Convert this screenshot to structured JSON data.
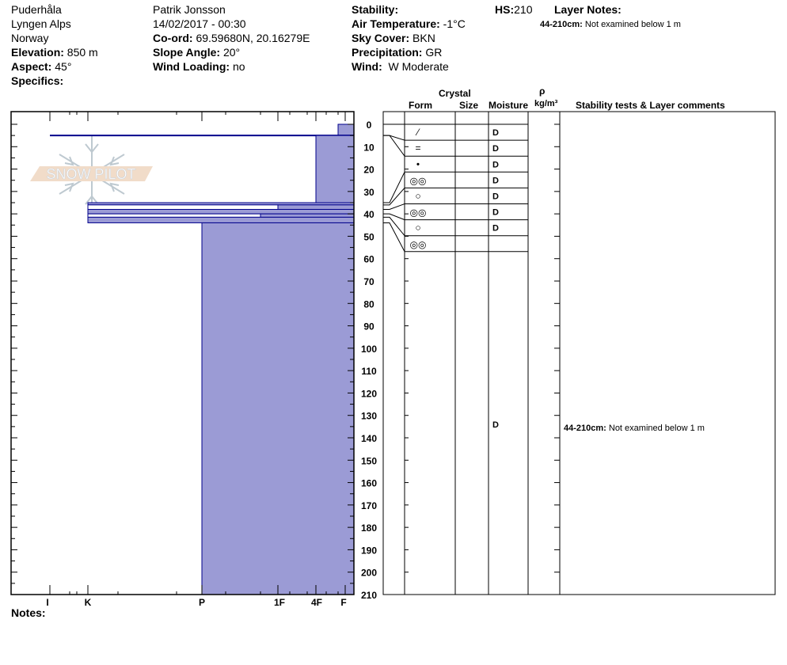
{
  "header": {
    "location": "Puderhåla",
    "range": "Lyngen Alps",
    "country": "Norway",
    "elevation_label": "Elevation:",
    "elevation": "850 m",
    "aspect_label": "Aspect:",
    "aspect": "45°",
    "specifics_label": "Specifics:",
    "observer": "Patrik Jonsson",
    "datetime": "14/02/2017 - 00:30",
    "coord_label": "Co-ord:",
    "coord": "69.59680N, 20.16279E",
    "slope_label": "Slope Angle:",
    "slope": "20°",
    "wind_loading_label": "Wind Loading:",
    "wind_loading": "no",
    "stability_label": "Stability:",
    "air_temp_label": "Air Temperature:",
    "air_temp": "-1°C",
    "sky_label": "Sky Cover:",
    "sky": "BKN",
    "precip_label": "Precipitation:",
    "precip": "GR",
    "wind_label": "Wind:",
    "wind": "W Moderate",
    "hs_label": "HS:",
    "hs": "210",
    "layer_notes_label": "Layer Notes:",
    "layer_note_range": "44-210cm:",
    "layer_note_text": "Not examined below 1 m"
  },
  "table_headers": {
    "crystal": "Crystal",
    "form": "Form",
    "size": "Size",
    "moisture": "Moisture",
    "rho": "ρ",
    "density_unit": "kg/m³",
    "comments": "Stability tests & Layer comments"
  },
  "notes_label": "Notes:",
  "logo_text": "SNOW PILOT",
  "colors": {
    "fill": "#9b9bd5",
    "outline": "#00008b",
    "crust": "#00008b"
  },
  "chart_data": {
    "type": "snow-profile",
    "y_axis": {
      "label": "",
      "range": [
        0,
        210
      ],
      "tick_step": 10,
      "inverted": true
    },
    "x_axis": {
      "ticks": [
        "I",
        "K",
        "P",
        "1F",
        "4F",
        "F"
      ]
    },
    "layers": [
      {
        "top": 0,
        "bottom": 5,
        "hardness": "F+",
        "form": "⁄",
        "moisture": "D"
      },
      {
        "top": 5,
        "bottom": 5,
        "hardness": "I",
        "form": "=",
        "moisture": "D"
      },
      {
        "top": 5,
        "bottom": 35,
        "hardness": "4F",
        "form": "•",
        "moisture": "D"
      },
      {
        "top": 35,
        "bottom": 36,
        "hardness": "K",
        "form": "◎◎",
        "moisture": "D"
      },
      {
        "top": 36,
        "bottom": 38,
        "hardness": "1F",
        "form": "○",
        "moisture": "D"
      },
      {
        "top": 38,
        "bottom": 40,
        "hardness": "K",
        "form": "◎◎",
        "moisture": "D"
      },
      {
        "top": 40,
        "bottom": 41.5,
        "hardness": "1F+",
        "form": "○",
        "moisture": "D"
      },
      {
        "top": 41.5,
        "bottom": 44,
        "hardness": "K",
        "form": "◎◎",
        "moisture": ""
      },
      {
        "top": 44,
        "bottom": 210,
        "hardness": "P",
        "form": "",
        "moisture": "D",
        "comment_label": "44-210cm:",
        "comment": "Not examined below 1 m"
      }
    ]
  }
}
